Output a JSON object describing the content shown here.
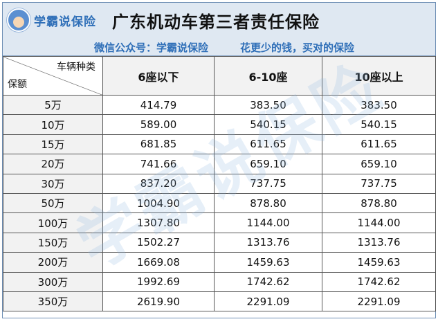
{
  "banner": {
    "logo_text": "学霸说保险",
    "title": "广东机动车第三者责任保险",
    "wechat": "微信公众号：学霸说保险",
    "slogan": "花更少的钱，买对的保险"
  },
  "table": {
    "header_vehicle": "车辆种类",
    "header_amount": "保额",
    "columns": [
      "6座以下",
      "6-10座",
      "10座以上"
    ],
    "rows": [
      {
        "amount": "5万",
        "values": [
          "414.79",
          "383.50",
          "383.50"
        ]
      },
      {
        "amount": "10万",
        "values": [
          "589.00",
          "540.15",
          "540.15"
        ]
      },
      {
        "amount": "15万",
        "values": [
          "681.85",
          "611.65",
          "611.65"
        ]
      },
      {
        "amount": "20万",
        "values": [
          "741.66",
          "659.10",
          "659.10"
        ]
      },
      {
        "amount": "30万",
        "values": [
          "837.20",
          "737.75",
          "737.75"
        ]
      },
      {
        "amount": "50万",
        "values": [
          "1004.90",
          "878.80",
          "878.80"
        ]
      },
      {
        "amount": "100万",
        "values": [
          "1307.80",
          "1144.00",
          "1144.00"
        ]
      },
      {
        "amount": "150万",
        "values": [
          "1502.27",
          "1313.76",
          "1313.76"
        ]
      },
      {
        "amount": "200万",
        "values": [
          "1669.08",
          "1459.63",
          "1459.63"
        ]
      },
      {
        "amount": "300万",
        "values": [
          "1992.69",
          "1742.62",
          "1742.62"
        ]
      },
      {
        "amount": "350万",
        "values": [
          "2619.90",
          "2291.09",
          "2291.09"
        ]
      }
    ]
  },
  "watermark": "学霸说保险"
}
